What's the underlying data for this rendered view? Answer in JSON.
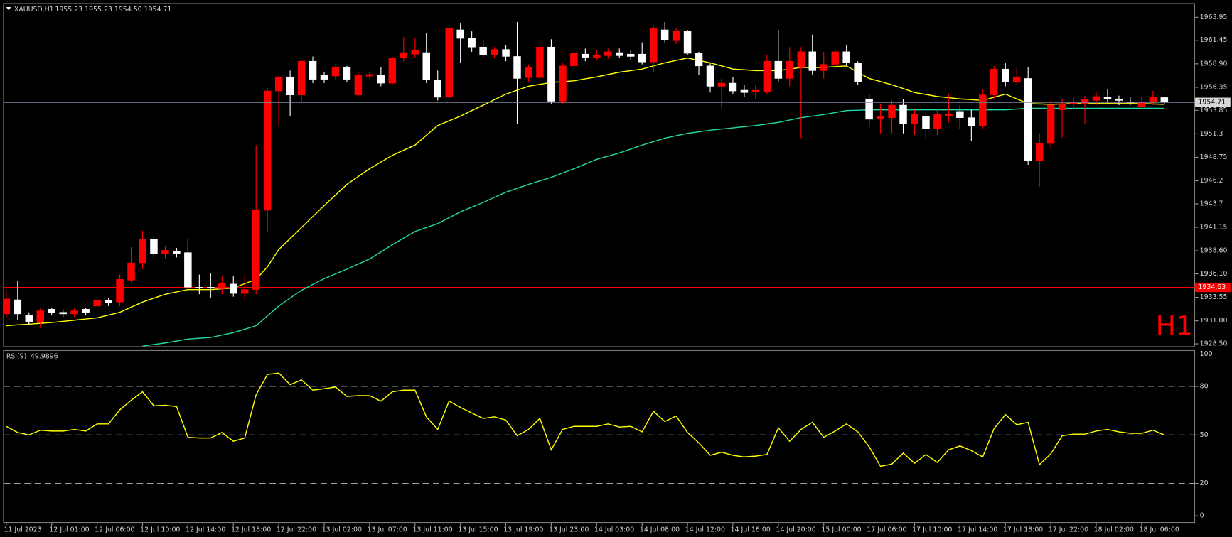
{
  "chart_data": [
    {
      "type": "candlestick",
      "title": "XAUUSD,H1",
      "ohlc_text": "1955.23 1955.23 1954.50 1954.71",
      "timeframe_label": "H1",
      "categories": [
        "11 Jul 2023",
        null,
        null,
        null,
        "12 Jul 01:00",
        null,
        null,
        null,
        "12 Jul 06:00",
        null,
        null,
        null,
        "12 Jul 10:00",
        null,
        null,
        null,
        "12 Jul 14:00",
        null,
        null,
        null,
        "12 Jul 18:00",
        null,
        null,
        null,
        "12 Jul 22:00",
        null,
        null,
        null,
        "13 Jul 02:00",
        null,
        null,
        null,
        "13 Jul 07:00",
        null,
        null,
        null,
        "13 Jul 11:00",
        null,
        null,
        null,
        "13 Jul 15:00",
        null,
        null,
        null,
        "13 Jul 19:00",
        null,
        null,
        null,
        "13 Jul 23:00",
        null,
        null,
        null,
        "14 Jul 03:00",
        null,
        null,
        null,
        "14 Jul 08:00",
        null,
        null,
        null,
        "14 Jul 12:00",
        null,
        null,
        null,
        "14 Jul 16:00",
        null,
        null,
        null,
        "14 Jul 20:00",
        null,
        null,
        null,
        "15 Jul 00:00",
        null,
        null,
        null,
        "17 Jul 06:00",
        null,
        null,
        null,
        "17 Jul 10:00",
        null,
        null,
        null,
        "17 Jul 14:00",
        null,
        null,
        null,
        "17 Jul 18:00",
        null,
        null,
        null,
        "17 Jul 22:00",
        null,
        null,
        null,
        "18 Jul 02:00",
        null,
        null,
        null,
        "18 Jul 06:00",
        null,
        null
      ],
      "open": [
        1931.75,
        1933.28,
        1931.58,
        1930.9,
        1932.26,
        1931.92,
        1931.75,
        1932.26,
        1932.6,
        1933.2,
        1933.03,
        1935.41,
        1937.29,
        1939.84,
        1938.31,
        1938.57,
        1938.4,
        1934.65,
        1934.65,
        1934.48,
        1934.99,
        1933.97,
        1934.39,
        1943.0,
        1955.95,
        1957.48,
        1955.52,
        1959.18,
        1957.65,
        1957.57,
        1958.5,
        1955.52,
        1957.57,
        1957.65,
        1956.8,
        1959.53,
        1959.95,
        1960.12,
        1957.14,
        1955.27,
        1962.59,
        1961.66,
        1960.72,
        1959.87,
        1960.46,
        1959.7,
        1957.4,
        1957.4,
        1960.72,
        1954.84,
        1958.67,
        1959.95,
        1959.61,
        1959.78,
        1960.12,
        1959.95,
        1959.95,
        1959.1,
        1962.59,
        1961.4,
        1962.42,
        1960.04,
        1958.67,
        1956.46,
        1956.8,
        1956.03,
        1955.86,
        1955.86,
        1959.18,
        1957.31,
        1958.5,
        1960.21,
        1958.16,
        1958.84,
        1960.21,
        1959.01,
        1955.09,
        1952.88,
        1953.05,
        1954.41,
        1952.37,
        1953.22,
        1951.86,
        1953.22,
        1953.73,
        1953.05,
        1952.2,
        1955.52,
        1958.33,
        1956.97,
        1957.31,
        1948.36,
        1950.24,
        1953.9,
        1954.58,
        1954.58,
        1954.92,
        1955.27,
        1955.09,
        1954.75,
        1954.24,
        1954.75,
        1955.23
      ],
      "high": [
        1934.31,
        1935.33,
        1931.92,
        1932.43,
        1932.43,
        1932.26,
        1932.43,
        1932.43,
        1933.62,
        1933.45,
        1936.01,
        1938.99,
        1940.78,
        1940.27,
        1939.08,
        1938.91,
        1939.93,
        1936.01,
        1936.18,
        1935.84,
        1935.84,
        1936.01,
        1950.07,
        1956.29,
        1957.74,
        1958.16,
        1959.35,
        1959.7,
        1957.99,
        1958.84,
        1958.67,
        1957.99,
        1957.99,
        1958.5,
        1959.7,
        1961.83,
        1961.74,
        1962.25,
        1958.16,
        1963.1,
        1963.27,
        1962.42,
        1961.4,
        1960.72,
        1960.89,
        1963.44,
        1958.84,
        1961.74,
        1961.57,
        1959.01,
        1960.38,
        1960.55,
        1960.38,
        1960.55,
        1960.55,
        1960.38,
        1961.23,
        1963.1,
        1963.44,
        1962.76,
        1962.59,
        1960.21,
        1959.01,
        1957.31,
        1957.48,
        1956.63,
        1956.63,
        1959.87,
        1962.59,
        1960.72,
        1960.72,
        1962.08,
        1960.21,
        1960.55,
        1960.89,
        1959.18,
        1955.61,
        1954.58,
        1954.92,
        1955.09,
        1953.9,
        1953.73,
        1953.9,
        1955.61,
        1954.41,
        1953.9,
        1956.12,
        1958.67,
        1959.01,
        1958.5,
        1958.5,
        1951.35,
        1954.92,
        1955.09,
        1955.27,
        1955.44,
        1955.78,
        1956.12,
        1955.44,
        1955.27,
        1955.27,
        1955.95,
        1955.23
      ],
      "low": [
        1931.32,
        1931.07,
        1930.56,
        1930.22,
        1931.58,
        1931.41,
        1931.41,
        1931.58,
        1932.18,
        1932.6,
        1932.6,
        1935.16,
        1936.61,
        1937.71,
        1937.71,
        1937.88,
        1934.31,
        1933.88,
        1933.45,
        1933.88,
        1933.62,
        1933.28,
        1933.88,
        1940.7,
        1952.2,
        1953.22,
        1954.75,
        1956.8,
        1956.8,
        1957.14,
        1956.88,
        1955.27,
        1957.31,
        1956.46,
        1956.63,
        1959.18,
        1959.53,
        1956.8,
        1954.92,
        1955.09,
        1959.01,
        1960.21,
        1959.53,
        1959.53,
        1959.18,
        1952.37,
        1956.97,
        1957.05,
        1954.58,
        1954.58,
        1958.16,
        1959.18,
        1959.35,
        1959.44,
        1959.53,
        1959.35,
        1958.84,
        1957.99,
        1961.23,
        1961.06,
        1959.87,
        1957.65,
        1955.78,
        1954.07,
        1955.61,
        1955.27,
        1955.09,
        1955.61,
        1956.97,
        1956.46,
        1950.83,
        1957.65,
        1957.31,
        1958.33,
        1958.67,
        1956.63,
        1952.03,
        1951.35,
        1951.35,
        1951.35,
        1951.18,
        1950.83,
        1951.18,
        1952.54,
        1951.86,
        1950.49,
        1951.86,
        1955.09,
        1956.46,
        1956.63,
        1947.94,
        1945.55,
        1949.64,
        1950.92,
        1953.9,
        1952.37,
        1954.41,
        1954.58,
        1954.41,
        1954.41,
        1954.07,
        1954.41,
        1954.5
      ],
      "close": [
        1933.37,
        1931.75,
        1930.9,
        1932.09,
        1931.92,
        1931.75,
        1932.09,
        1931.92,
        1933.2,
        1932.94,
        1935.5,
        1937.29,
        1939.84,
        1938.31,
        1938.65,
        1938.31,
        1934.65,
        1934.56,
        1934.6,
        1935.07,
        1933.97,
        1934.39,
        1943.0,
        1955.95,
        1957.48,
        1955.52,
        1959.18,
        1957.22,
        1957.22,
        1958.5,
        1957.22,
        1957.65,
        1957.74,
        1956.8,
        1959.53,
        1960.12,
        1960.38,
        1957.14,
        1955.27,
        1962.76,
        1961.66,
        1960.72,
        1959.87,
        1960.46,
        1959.7,
        1957.31,
        1958.5,
        1960.72,
        1954.84,
        1958.67,
        1960.04,
        1959.61,
        1959.87,
        1960.21,
        1959.78,
        1959.7,
        1959.1,
        1962.76,
        1961.48,
        1962.42,
        1960.04,
        1958.67,
        1956.46,
        1956.8,
        1955.95,
        1955.78,
        1956.03,
        1959.18,
        1957.31,
        1959.18,
        1960.21,
        1958.16,
        1958.84,
        1960.21,
        1959.01,
        1956.97,
        1952.88,
        1953.22,
        1954.41,
        1952.37,
        1953.39,
        1951.86,
        1953.39,
        1953.48,
        1953.05,
        1952.2,
        1955.52,
        1958.33,
        1956.97,
        1957.48,
        1948.36,
        1950.24,
        1954.41,
        1954.58,
        1954.75,
        1955.01,
        1955.35,
        1955.09,
        1954.92,
        1954.7,
        1954.75,
        1955.27,
        1954.71
      ],
      "up_color": "#ff0000",
      "down_color": "#ffffff",
      "lines": [
        {
          "color": "#ffff00",
          "values": [
            1930.47,
            1930.56,
            1930.64,
            1930.73,
            1930.81,
            1930.94,
            1931.07,
            1931.2,
            1931.32,
            1931.62,
            1931.92,
            1932.48,
            1933.03,
            1933.46,
            1933.88,
            1934.14,
            1934.39,
            1934.39,
            1934.39,
            1934.48,
            1934.56,
            1935.03,
            1935.5,
            1936.86,
            1938.74,
            1939.93,
            1941.12,
            1942.32,
            1943.51,
            1944.66,
            1945.81,
            1946.66,
            1947.51,
            1948.24,
            1948.96,
            1949.52,
            1950.07,
            1951.14,
            1952.2,
            1952.71,
            1953.22,
            1953.82,
            1954.41,
            1955.01,
            1955.61,
            1956.04,
            1956.46,
            1956.67,
            1956.88,
            1956.97,
            1957.05,
            1957.27,
            1957.48,
            1957.74,
            1957.99,
            1958.16,
            1958.33,
            1958.67,
            1959.01,
            1959.27,
            1959.53,
            1959.27,
            1959.01,
            1958.67,
            1958.33,
            1958.25,
            1958.16,
            1958.16,
            1958.16,
            1958.33,
            1958.5,
            1958.5,
            1958.5,
            1958.59,
            1958.67,
            1957.99,
            1957.31,
            1956.97,
            1956.63,
            1956.21,
            1955.78,
            1955.57,
            1955.35,
            1955.22,
            1955.09,
            1955.01,
            1954.92,
            1955.27,
            1955.61,
            1955.1,
            1954.58,
            1954.54,
            1954.5,
            1954.54,
            1954.58,
            1954.58,
            1954.58,
            1954.58,
            1954.58,
            1954.58,
            1954.58,
            1954.54,
            1954.5
          ]
        },
        {
          "color": "#20d8a8",
          "values": [
            null,
            null,
            null,
            null,
            null,
            null,
            null,
            null,
            null,
            null,
            null,
            null,
            1928.26,
            1928.43,
            1928.6,
            1928.81,
            1929.02,
            1929.11,
            1929.19,
            1929.45,
            1929.71,
            1930.09,
            1930.47,
            1931.54,
            1932.6,
            1933.46,
            1934.31,
            1934.95,
            1935.58,
            1936.1,
            1936.61,
            1937.16,
            1937.71,
            1938.48,
            1939.25,
            1939.98,
            1940.7,
            1941.13,
            1941.55,
            1942.19,
            1942.83,
            1943.34,
            1943.85,
            1944.41,
            1944.96,
            1945.39,
            1945.81,
            1946.19,
            1946.57,
            1947.04,
            1947.51,
            1948.02,
            1948.53,
            1948.88,
            1949.22,
            1949.65,
            1950.07,
            1950.45,
            1950.83,
            1951.09,
            1951.35,
            1951.52,
            1951.69,
            1951.82,
            1951.94,
            1952.07,
            1952.2,
            1952.37,
            1952.54,
            1952.8,
            1953.05,
            1953.22,
            1953.39,
            1953.61,
            1953.82,
            1953.86,
            1953.9,
            1953.9,
            1953.9,
            1953.9,
            1953.9,
            1953.9,
            1953.9,
            1953.9,
            1953.9,
            1953.9,
            1953.9,
            1953.9,
            1953.9,
            1953.99,
            1954.07,
            1954.07,
            1954.07,
            1954.07,
            1954.07,
            1954.07,
            1954.07,
            1954.07,
            1954.07,
            1954.07,
            1954.07,
            1954.07,
            1954.07
          ]
        }
      ],
      "ylim": [
        1928.24,
        1965.4
      ],
      "yticks": [
        {
          "value": 1928.5,
          "label": "1928.50"
        },
        {
          "value": 1931,
          "label": "1931.00"
        },
        1933.55,
        1936.1,
        {
          "value": 1936.1,
          "label": "1936.10"
        },
        {
          "value": 1938.6,
          "label": "1938.60"
        },
        1941.15,
        1943.7,
        1946.2,
        1948.75,
        1951.3,
        1953.85,
        1956.35,
        {
          "value": 1958.9,
          "label": "1958.90"
        },
        1961.45,
        1963.95
      ],
      "price_line": {
        "value": 1934.63,
        "color": "#ff0000"
      },
      "current_line_color": "#7888a0"
    },
    {
      "type": "line",
      "title": "RSI(9)",
      "color": "#ffff00",
      "values": [
        55.3,
        51.5,
        50.0,
        52.9,
        52.4,
        52.4,
        53.4,
        52.4,
        56.8,
        56.8,
        65.5,
        71.4,
        76.7,
        68.0,
        68.4,
        67.5,
        48.5,
        48.1,
        48.1,
        51.5,
        46.1,
        48.1,
        74.8,
        87.4,
        88.3,
        81.1,
        84.0,
        77.7,
        78.6,
        79.6,
        73.8,
        74.3,
        74.3,
        70.9,
        76.7,
        77.7,
        77.7,
        61.2,
        53.4,
        70.9,
        67.0,
        63.6,
        60.2,
        61.2,
        59.2,
        49.5,
        53.4,
        60.2,
        40.8,
        53.4,
        55.3,
        55.3,
        55.3,
        56.8,
        54.9,
        55.3,
        51.9,
        64.6,
        58.3,
        61.7,
        51.5,
        45.1,
        37.4,
        39.3,
        37.4,
        36.4,
        36.9,
        37.9,
        54.4,
        46.1,
        53.4,
        57.8,
        48.5,
        52.4,
        56.8,
        51.9,
        42.7,
        30.6,
        32.0,
        38.8,
        32.5,
        37.9,
        33.0,
        40.8,
        43.2,
        40.3,
        36.4,
        53.9,
        62.6,
        56.3,
        57.8,
        31.6,
        38.3,
        49.5,
        50.5,
        50.5,
        52.4,
        53.4,
        51.9,
        51.0,
        51.0,
        52.9,
        49.9896
      ],
      "ylim": [
        0,
        100
      ],
      "yticks": [
        0,
        20,
        50,
        80,
        100
      ],
      "levels": [
        20,
        50,
        80
      ]
    }
  ]
}
